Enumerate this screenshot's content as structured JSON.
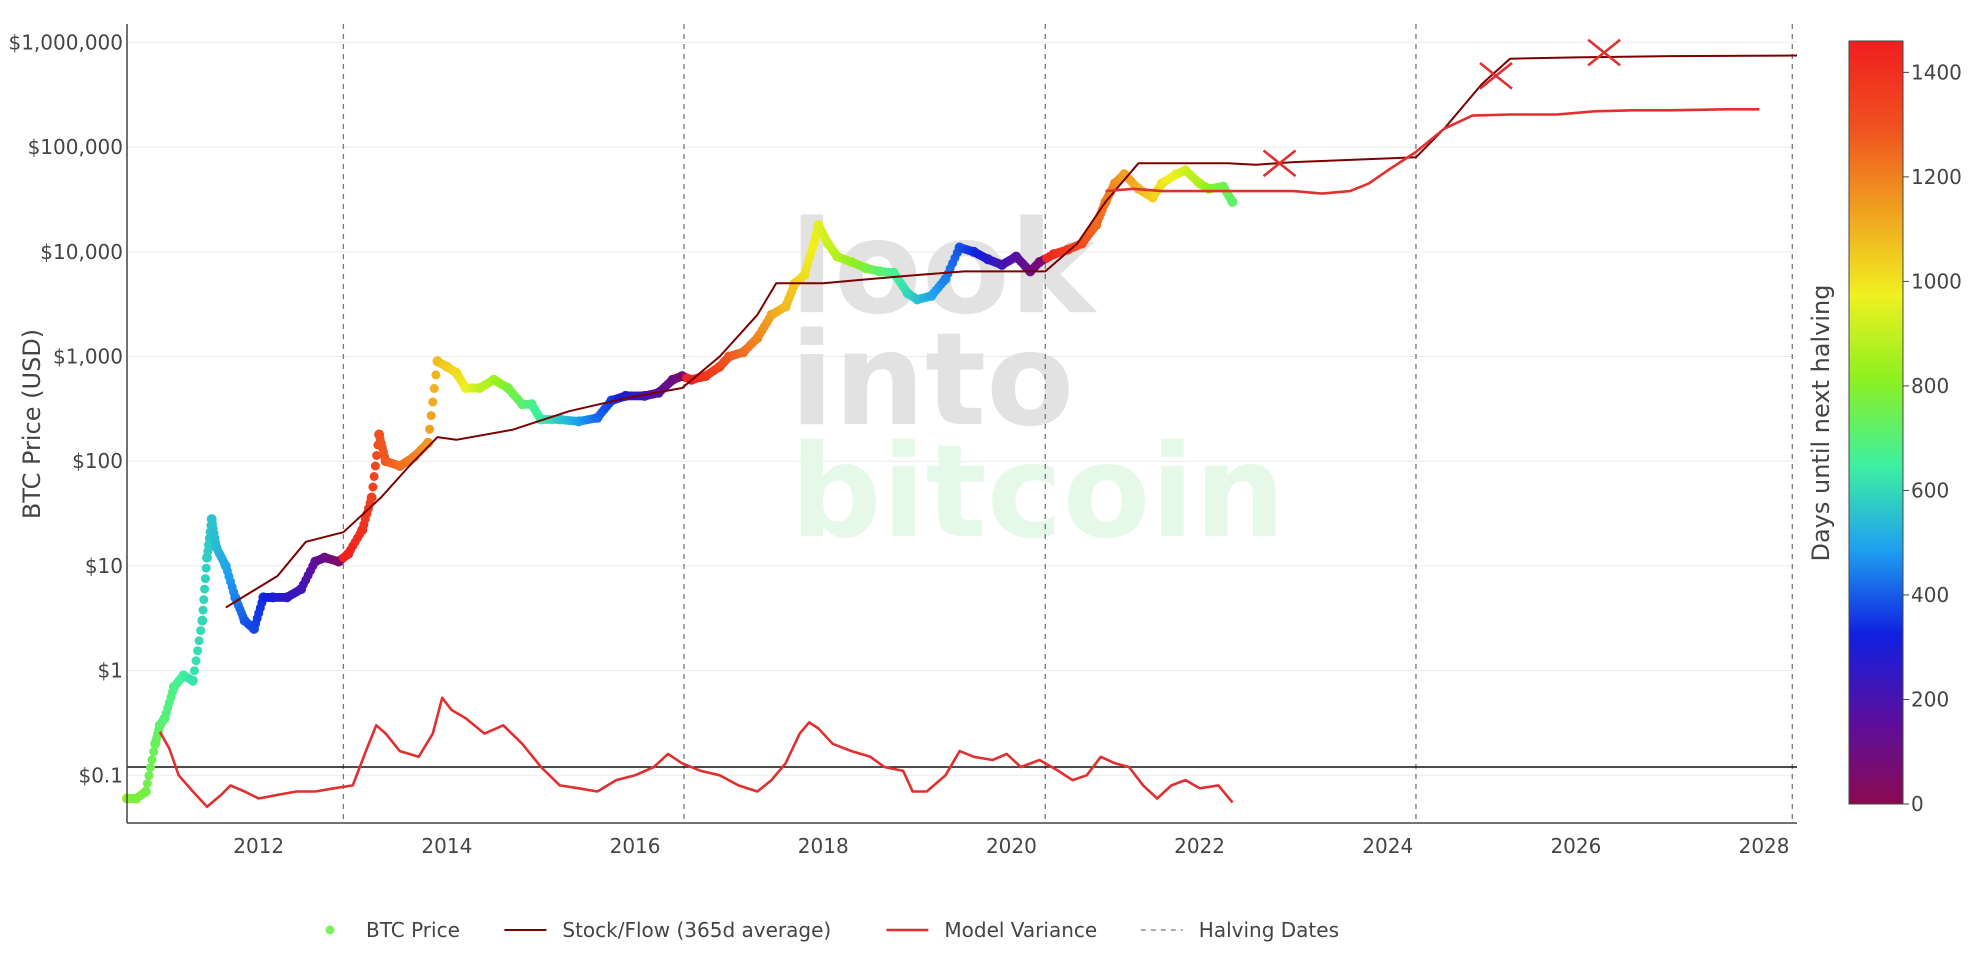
{
  "chart_data": {
    "type": "scatter",
    "ylabel": "BTC Price (USD)",
    "yscale": "log",
    "ylim": [
      0.035,
      1500000
    ],
    "xlim": [
      2010.6,
      2028.35
    ],
    "x_ticks": [
      2012,
      2014,
      2016,
      2018,
      2020,
      2022,
      2024,
      2026,
      2028
    ],
    "y_ticks": [
      {
        "value": 1000000,
        "label": "$1,000,000"
      },
      {
        "value": 100000,
        "label": "$100,000"
      },
      {
        "value": 10000,
        "label": "$10,000"
      },
      {
        "value": 1000,
        "label": "$1,000"
      },
      {
        "value": 100,
        "label": "$100"
      },
      {
        "value": 10,
        "label": "$10"
      },
      {
        "value": 1,
        "label": "$1"
      },
      {
        "value": 0.1,
        "label": "$0.1"
      }
    ],
    "grid": true,
    "reference_line": {
      "y": 0.12
    },
    "halving_dates": [
      2012.9,
      2016.52,
      2020.36,
      2024.3,
      2028.3
    ],
    "colorbar": {
      "title": "Days until next halving",
      "range": [
        0,
        1460
      ],
      "ticks": [
        0,
        200,
        400,
        600,
        800,
        1000,
        1200,
        1400
      ],
      "colors": [
        "#8b0a50",
        "#5a0fa0",
        "#1020e0",
        "#1ea0f0",
        "#3ef0a0",
        "#8cf020",
        "#f0f020",
        "#f0a020",
        "#f05020",
        "#f01e1e"
      ]
    },
    "series": [
      {
        "name": "BTC Price",
        "kind": "markers",
        "color_by": "days_until_next_halving",
        "legend_color": "#7cf05a",
        "points": [
          [
            2010.6,
            0.06,
            800
          ],
          [
            2010.7,
            0.06,
            780
          ],
          [
            2010.8,
            0.07,
            760
          ],
          [
            2010.9,
            0.2,
            740
          ],
          [
            2010.95,
            0.3,
            720
          ],
          [
            2011.0,
            0.35,
            700
          ],
          [
            2011.1,
            0.7,
            680
          ],
          [
            2011.2,
            0.9,
            650
          ],
          [
            2011.3,
            0.8,
            620
          ],
          [
            2011.4,
            3,
            600
          ],
          [
            2011.45,
            12,
            580
          ],
          [
            2011.5,
            28,
            560
          ],
          [
            2011.55,
            15,
            540
          ],
          [
            2011.65,
            10,
            500
          ],
          [
            2011.75,
            5,
            450
          ],
          [
            2011.85,
            3,
            400
          ],
          [
            2011.95,
            2.5,
            370
          ],
          [
            2012.05,
            5,
            340
          ],
          [
            2012.15,
            5,
            300
          ],
          [
            2012.3,
            5,
            260
          ],
          [
            2012.45,
            6,
            220
          ],
          [
            2012.6,
            11,
            150
          ],
          [
            2012.7,
            12,
            110
          ],
          [
            2012.85,
            11,
            50
          ],
          [
            2012.95,
            13,
            1450
          ],
          [
            2013.1,
            22,
            1400
          ],
          [
            2013.2,
            45,
            1350
          ],
          [
            2013.28,
            180,
            1300
          ],
          [
            2013.35,
            100,
            1280
          ],
          [
            2013.5,
            90,
            1240
          ],
          [
            2013.65,
            110,
            1200
          ],
          [
            2013.8,
            150,
            1150
          ],
          [
            2013.9,
            900,
            1080
          ],
          [
            2014.0,
            800,
            1050
          ],
          [
            2014.1,
            700,
            1020
          ],
          [
            2014.2,
            500,
            980
          ],
          [
            2014.35,
            500,
            900
          ],
          [
            2014.5,
            600,
            850
          ],
          [
            2014.65,
            500,
            780
          ],
          [
            2014.8,
            350,
            720
          ],
          [
            2014.9,
            350,
            680
          ],
          [
            2015.0,
            250,
            640
          ],
          [
            2015.2,
            250,
            570
          ],
          [
            2015.4,
            240,
            490
          ],
          [
            2015.6,
            260,
            420
          ],
          [
            2015.75,
            380,
            360
          ],
          [
            2015.9,
            420,
            300
          ],
          [
            2016.1,
            420,
            220
          ],
          [
            2016.25,
            450,
            170
          ],
          [
            2016.4,
            600,
            110
          ],
          [
            2016.5,
            650,
            60
          ],
          [
            2016.6,
            600,
            1440
          ],
          [
            2016.75,
            650,
            1390
          ],
          [
            2016.9,
            800,
            1330
          ],
          [
            2017.0,
            1000,
            1290
          ],
          [
            2017.15,
            1100,
            1240
          ],
          [
            2017.3,
            1500,
            1190
          ],
          [
            2017.45,
            2500,
            1130
          ],
          [
            2017.6,
            3000,
            1080
          ],
          [
            2017.7,
            5000,
            1050
          ],
          [
            2017.8,
            6000,
            1010
          ],
          [
            2017.9,
            12000,
            970
          ],
          [
            2017.95,
            18000,
            950
          ],
          [
            2018.05,
            12000,
            920
          ],
          [
            2018.15,
            9000,
            880
          ],
          [
            2018.3,
            8000,
            830
          ],
          [
            2018.45,
            7000,
            780
          ],
          [
            2018.6,
            6500,
            720
          ],
          [
            2018.75,
            6300,
            670
          ],
          [
            2018.9,
            4000,
            600
          ],
          [
            2019.0,
            3500,
            560
          ],
          [
            2019.15,
            3800,
            500
          ],
          [
            2019.3,
            5500,
            450
          ],
          [
            2019.45,
            11000,
            390
          ],
          [
            2019.6,
            10000,
            340
          ],
          [
            2019.75,
            8500,
            280
          ],
          [
            2019.9,
            7500,
            220
          ],
          [
            2020.05,
            9000,
            170
          ],
          [
            2020.2,
            6500,
            110
          ],
          [
            2020.3,
            8000,
            70
          ],
          [
            2020.45,
            9500,
            1420
          ],
          [
            2020.6,
            10500,
            1370
          ],
          [
            2020.75,
            12000,
            1310
          ],
          [
            2020.9,
            18000,
            1250
          ],
          [
            2021.0,
            30000,
            1220
          ],
          [
            2021.1,
            45000,
            1180
          ],
          [
            2021.2,
            55000,
            1140
          ],
          [
            2021.35,
            40000,
            1100
          ],
          [
            2021.5,
            33000,
            1040
          ],
          [
            2021.6,
            45000,
            1000
          ],
          [
            2021.75,
            55000,
            960
          ],
          [
            2021.85,
            60000,
            920
          ],
          [
            2022.0,
            45000,
            870
          ],
          [
            2022.1,
            40000,
            820
          ],
          [
            2022.25,
            42000,
            760
          ],
          [
            2022.35,
            30000,
            720
          ]
        ]
      },
      {
        "name": "Stock/Flow (365d average)",
        "kind": "line",
        "color": "#7b0000",
        "points": [
          [
            2011.65,
            4
          ],
          [
            2012.2,
            8
          ],
          [
            2012.5,
            17
          ],
          [
            2012.9,
            21
          ],
          [
            2013.3,
            45
          ],
          [
            2013.6,
            90
          ],
          [
            2013.9,
            170
          ],
          [
            2014.1,
            160
          ],
          [
            2014.7,
            200
          ],
          [
            2015.3,
            300
          ],
          [
            2015.9,
            400
          ],
          [
            2016.5,
            500
          ],
          [
            2016.9,
            1000
          ],
          [
            2017.3,
            2500
          ],
          [
            2017.5,
            5000
          ],
          [
            2018.0,
            5000
          ],
          [
            2018.5,
            5500
          ],
          [
            2019.0,
            6000
          ],
          [
            2019.5,
            6500
          ],
          [
            2020.0,
            6500
          ],
          [
            2020.36,
            6500
          ],
          [
            2020.7,
            12000
          ],
          [
            2021.0,
            30000
          ],
          [
            2021.35,
            70000
          ],
          [
            2021.5,
            70000
          ],
          [
            2022.0,
            70000
          ],
          [
            2022.3,
            70000
          ],
          [
            2022.6,
            68000
          ],
          [
            2023.0,
            72000
          ],
          [
            2023.5,
            75000
          ],
          [
            2024.3,
            80000
          ],
          [
            2024.6,
            150000
          ],
          [
            2025.0,
            400000
          ],
          [
            2025.3,
            700000
          ],
          [
            2026.0,
            720000
          ],
          [
            2027.0,
            740000
          ],
          [
            2028.35,
            750000
          ]
        ]
      },
      {
        "name": "Model Variance",
        "kind": "line",
        "color": "#e03030",
        "points": [
          [
            2010.95,
            0.26
          ],
          [
            2011.05,
            0.18
          ],
          [
            2011.15,
            0.1
          ],
          [
            2011.3,
            0.07
          ],
          [
            2011.45,
            0.05
          ],
          [
            2011.6,
            0.065
          ],
          [
            2011.7,
            0.08
          ],
          [
            2011.85,
            0.07
          ],
          [
            2012.0,
            0.06
          ],
          [
            2012.2,
            0.065
          ],
          [
            2012.4,
            0.07
          ],
          [
            2012.6,
            0.07
          ],
          [
            2012.8,
            0.075
          ],
          [
            2013.0,
            0.08
          ],
          [
            2013.15,
            0.18
          ],
          [
            2013.25,
            0.3
          ],
          [
            2013.35,
            0.25
          ],
          [
            2013.5,
            0.17
          ],
          [
            2013.7,
            0.15
          ],
          [
            2013.85,
            0.25
          ],
          [
            2013.95,
            0.55
          ],
          [
            2014.05,
            0.42
          ],
          [
            2014.2,
            0.35
          ],
          [
            2014.4,
            0.25
          ],
          [
            2014.6,
            0.3
          ],
          [
            2014.8,
            0.2
          ],
          [
            2015.0,
            0.12
          ],
          [
            2015.2,
            0.08
          ],
          [
            2015.4,
            0.075
          ],
          [
            2015.6,
            0.07
          ],
          [
            2015.8,
            0.09
          ],
          [
            2016.0,
            0.1
          ],
          [
            2016.2,
            0.12
          ],
          [
            2016.35,
            0.16
          ],
          [
            2016.5,
            0.13
          ],
          [
            2016.7,
            0.11
          ],
          [
            2016.9,
            0.1
          ],
          [
            2017.1,
            0.08
          ],
          [
            2017.3,
            0.07
          ],
          [
            2017.45,
            0.09
          ],
          [
            2017.6,
            0.13
          ],
          [
            2017.75,
            0.25
          ],
          [
            2017.85,
            0.32
          ],
          [
            2017.95,
            0.28
          ],
          [
            2018.1,
            0.2
          ],
          [
            2018.3,
            0.17
          ],
          [
            2018.5,
            0.15
          ],
          [
            2018.65,
            0.12
          ],
          [
            2018.85,
            0.11
          ],
          [
            2018.95,
            0.07
          ],
          [
            2019.1,
            0.07
          ],
          [
            2019.3,
            0.1
          ],
          [
            2019.45,
            0.17
          ],
          [
            2019.6,
            0.15
          ],
          [
            2019.8,
            0.14
          ],
          [
            2019.95,
            0.16
          ],
          [
            2020.1,
            0.12
          ],
          [
            2020.3,
            0.14
          ],
          [
            2020.5,
            0.11
          ],
          [
            2020.65,
            0.09
          ],
          [
            2020.8,
            0.1
          ],
          [
            2020.95,
            0.15
          ],
          [
            2021.1,
            0.13
          ],
          [
            2021.25,
            0.12
          ],
          [
            2021.4,
            0.08
          ],
          [
            2021.55,
            0.06
          ],
          [
            2021.7,
            0.08
          ],
          [
            2021.85,
            0.09
          ],
          [
            2022.0,
            0.075
          ],
          [
            2022.2,
            0.08
          ],
          [
            2022.35,
            0.055
          ]
        ]
      },
      {
        "name": "Model Variance",
        "kind": "line",
        "color": "#e03030",
        "points": [
          [
            2021.0,
            38000
          ],
          [
            2021.3,
            40000
          ],
          [
            2021.6,
            38000
          ],
          [
            2022.0,
            38000
          ],
          [
            2022.5,
            38000
          ],
          [
            2023.0,
            38000
          ],
          [
            2023.3,
            36000
          ],
          [
            2023.6,
            38000
          ],
          [
            2023.8,
            45000
          ],
          [
            2024.0,
            60000
          ],
          [
            2024.3,
            90000
          ],
          [
            2024.6,
            150000
          ],
          [
            2024.9,
            200000
          ],
          [
            2025.3,
            205000
          ],
          [
            2025.8,
            205000
          ],
          [
            2026.2,
            220000
          ],
          [
            2026.6,
            225000
          ],
          [
            2027.0,
            225000
          ],
          [
            2027.6,
            230000
          ],
          [
            2027.95,
            230000
          ]
        ]
      }
    ],
    "annotations": [
      {
        "type": "x-mark",
        "x": 2022.85,
        "y": 70000
      },
      {
        "type": "x-mark",
        "x": 2025.15,
        "y": 480000
      },
      {
        "type": "x-mark",
        "x": 2026.3,
        "y": 800000
      }
    ],
    "legend": {
      "placement": "bottom",
      "items": [
        "BTC Price",
        "Stock/Flow (365d average)",
        "Model Variance",
        "Halving Dates"
      ]
    },
    "watermark": [
      "look",
      "into",
      "bitcoin"
    ]
  }
}
